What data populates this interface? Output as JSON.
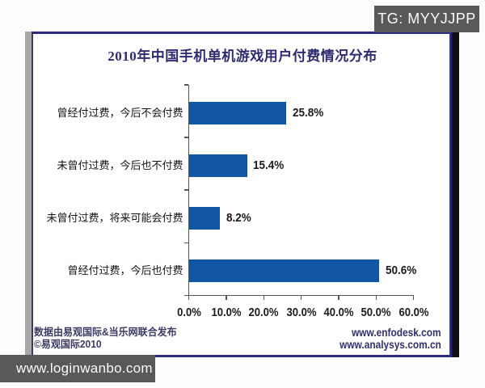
{
  "watermarks": {
    "top_right": "TG: MYYJJPP",
    "bottom_left": "www.loginwanbo.com"
  },
  "chart_data": {
    "type": "bar",
    "orientation": "horizontal",
    "title": "2010年中国手机单机游戏用户付费情况分布",
    "categories": [
      "曾经付过费，今后不会付费",
      "未曾付过费，今后也不付费",
      "未曾付过费，将来可能会付费",
      "曾经付过费，今后也付费"
    ],
    "values": [
      25.8,
      15.4,
      8.2,
      50.6
    ],
    "value_labels": [
      "25.8%",
      "15.4%",
      "8.2%",
      "50.6%"
    ],
    "x_tick_values": [
      0,
      10,
      20,
      30,
      40,
      50,
      60
    ],
    "x_tick_labels": [
      "0.0%",
      "10.0%",
      "20.0%",
      "30.0%",
      "40.0%",
      "50.0%",
      "60.0%"
    ],
    "xlim": [
      0,
      60
    ],
    "bar_color": "#1156a2",
    "grid": false,
    "legend": false
  },
  "footer": {
    "source_line1": "数据由易观国际&当乐网联合发布",
    "source_line2": "©易观国际2010",
    "url_line1": "www.enfodesk.com",
    "url_line2": "www.analysys.com.cn"
  },
  "colors": {
    "bar": "#1156a2",
    "title_text": "#2e2b6e",
    "frame_border": "#2b2b7c",
    "axis": "#555555",
    "watermark_bg": "#59595b",
    "watermark_text": "#fafafa"
  }
}
